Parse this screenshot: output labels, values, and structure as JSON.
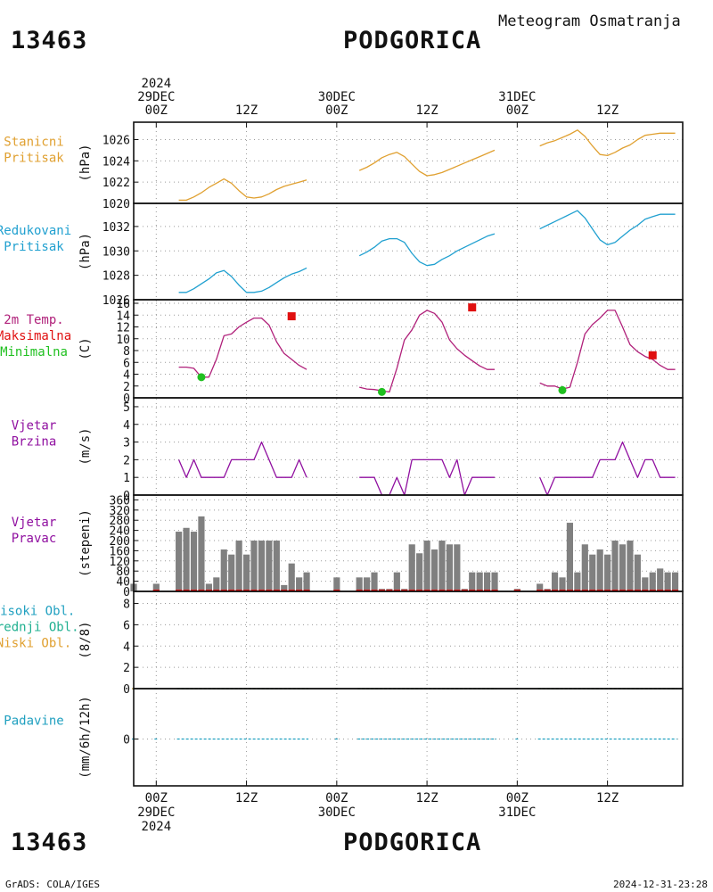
{
  "header": {
    "station_id": "13463",
    "station_name": "PODGORICA",
    "subtitle": "Meteogram Osmatranja"
  },
  "footer": {
    "credit": "GrADS: COLA/IGES",
    "timestamp": "2024-12-31-23:28"
  },
  "time_axis": {
    "top_ticks": [
      {
        "hour": 0,
        "lines": [
          "2024",
          "29DEC",
          "00Z"
        ]
      },
      {
        "hour": 12,
        "lines": [
          "12Z"
        ]
      },
      {
        "hour": 24,
        "lines": [
          "30DEC",
          "00Z"
        ]
      },
      {
        "hour": 36,
        "lines": [
          "12Z"
        ]
      },
      {
        "hour": 48,
        "lines": [
          "31DEC",
          "00Z"
        ]
      },
      {
        "hour": 60,
        "lines": [
          "12Z"
        ]
      }
    ],
    "bottom_ticks": [
      {
        "hour": 0,
        "lines": [
          "00Z",
          "29DEC",
          "2024"
        ]
      },
      {
        "hour": 12,
        "lines": [
          "12Z"
        ]
      },
      {
        "hour": 24,
        "lines": [
          "00Z",
          "30DEC"
        ]
      },
      {
        "hour": 36,
        "lines": [
          "12Z"
        ]
      },
      {
        "hour": 48,
        "lines": [
          "00Z",
          "31DEC"
        ]
      },
      {
        "hour": 60,
        "lines": [
          "12Z"
        ]
      }
    ],
    "hour_range": [
      -3,
      70
    ]
  },
  "colors": {
    "station_pressure": "#e0a030",
    "reduced_pressure": "#20a0d0",
    "temperature": "#b0207a",
    "maximum": "#e01010",
    "minimum": "#20c020",
    "wind": "#9010a0",
    "bars": "#808080",
    "high_cloud": "#20a0c0",
    "mid_cloud": "#20b090",
    "low_cloud": "#e0a030",
    "precip": "#20a0c0"
  },
  "chart_data": [
    {
      "type": "line",
      "panel": "station_pressure",
      "labels": [
        "Stanicni",
        "Pritisak"
      ],
      "ylabel": "(hPa)",
      "ylim": [
        1020,
        1027.3
      ],
      "yticks": [
        1020,
        1022,
        1024,
        1026
      ],
      "series": [
        {
          "segments": [
            {
              "x": [
                3,
                4,
                5,
                6,
                7,
                8,
                9,
                10,
                11,
                12,
                13,
                14,
                15,
                16,
                17,
                18,
                19,
                20
              ],
              "y": [
                1020.3,
                1020.3,
                1020.6,
                1021.0,
                1021.5,
                1021.9,
                1022.3,
                1021.9,
                1021.2,
                1020.6,
                1020.5,
                1020.6,
                1020.9,
                1021.3,
                1021.6,
                1021.8,
                1022.0,
                1022.2
              ]
            },
            {
              "x": [
                27,
                28,
                29,
                30,
                31,
                32,
                33,
                34,
                35,
                36,
                37,
                38,
                39,
                40,
                41,
                42,
                43,
                44,
                45
              ],
              "y": [
                1023.1,
                1023.4,
                1023.8,
                1024.3,
                1024.6,
                1024.8,
                1024.4,
                1023.7,
                1023.0,
                1022.6,
                1022.7,
                1022.9,
                1023.2,
                1023.5,
                1023.8,
                1024.1,
                1024.4,
                1024.7,
                1025.0
              ]
            },
            {
              "x": [
                51,
                52,
                53,
                54,
                55,
                56,
                57,
                58,
                59,
                60,
                61,
                62,
                63,
                64,
                65,
                66,
                67,
                68,
                69
              ],
              "y": [
                1025.4,
                1025.7,
                1025.9,
                1026.2,
                1026.5,
                1026.9,
                1026.3,
                1025.4,
                1024.6,
                1024.5,
                1024.8,
                1025.2,
                1025.5,
                1026.0,
                1026.4,
                1026.5,
                1026.6,
                1026.6,
                1026.6
              ]
            }
          ]
        }
      ]
    },
    {
      "type": "line",
      "panel": "reduced_pressure",
      "labels": [
        "Redukovani",
        "Pritisak"
      ],
      "ylabel": "(hPa)",
      "ylim": [
        1026,
        1033.6
      ],
      "yticks": [
        1026,
        1028,
        1030,
        1032
      ],
      "series": [
        {
          "segments": [
            {
              "x": [
                3,
                4,
                5,
                6,
                7,
                8,
                9,
                10,
                11,
                12,
                13,
                14,
                15,
                16,
                17,
                18,
                19,
                20
              ],
              "y": [
                1026.6,
                1026.6,
                1026.9,
                1027.3,
                1027.7,
                1028.2,
                1028.4,
                1027.9,
                1027.2,
                1026.6,
                1026.6,
                1026.7,
                1027.0,
                1027.4,
                1027.8,
                1028.1,
                1028.3,
                1028.6
              ]
            },
            {
              "x": [
                27,
                28,
                29,
                30,
                31,
                32,
                33,
                34,
                35,
                36,
                37,
                38,
                39,
                40,
                41,
                42,
                43,
                44,
                45
              ],
              "y": [
                1029.6,
                1029.9,
                1030.3,
                1030.8,
                1031.0,
                1031.0,
                1030.7,
                1029.8,
                1029.1,
                1028.8,
                1028.9,
                1029.3,
                1029.6,
                1030.0,
                1030.3,
                1030.6,
                1030.9,
                1031.2,
                1031.4
              ]
            },
            {
              "x": [
                51,
                52,
                53,
                54,
                55,
                56,
                57,
                58,
                59,
                60,
                61,
                62,
                63,
                64,
                65,
                66,
                67,
                68,
                69
              ],
              "y": [
                1031.8,
                1032.1,
                1032.4,
                1032.7,
                1033.0,
                1033.3,
                1032.7,
                1031.8,
                1030.9,
                1030.5,
                1030.7,
                1031.2,
                1031.7,
                1032.1,
                1032.6,
                1032.8,
                1033.0,
                1033.0,
                1033.0
              ]
            }
          ]
        }
      ]
    },
    {
      "type": "line",
      "panel": "temperature",
      "labels": [
        "2m Temp.",
        "Maksimalna",
        "Minimalna"
      ],
      "ylabel": "(C)",
      "ylim": [
        0,
        16
      ],
      "yticks": [
        0,
        2,
        4,
        6,
        8,
        10,
        12,
        14,
        16
      ],
      "series": [
        {
          "name": "2m Temp.",
          "segments": [
            {
              "x": [
                3,
                4,
                5,
                6,
                7,
                8,
                9,
                10,
                11,
                12,
                13,
                14,
                15,
                16,
                17,
                18,
                19,
                20
              ],
              "y": [
                5.2,
                5.2,
                5.0,
                3.5,
                3.5,
                6.5,
                10.5,
                10.8,
                12.0,
                12.8,
                13.5,
                13.5,
                12.3,
                9.5,
                7.5,
                6.5,
                5.5,
                4.8
              ]
            },
            {
              "x": [
                27,
                28,
                29,
                30,
                31,
                32,
                33,
                34,
                35,
                36,
                37,
                38,
                39,
                40,
                41,
                42,
                43,
                44,
                45
              ],
              "y": [
                1.8,
                1.5,
                1.4,
                1.2,
                1.0,
                5.0,
                9.8,
                11.5,
                14.0,
                14.8,
                14.3,
                12.8,
                9.8,
                8.3,
                7.2,
                6.3,
                5.4,
                4.8,
                4.8
              ]
            },
            {
              "x": [
                51,
                52,
                53,
                54,
                55,
                56,
                57,
                58,
                59,
                60,
                61,
                62,
                63,
                64,
                65,
                66,
                67,
                68,
                69
              ],
              "y": [
                2.5,
                2.0,
                2.0,
                1.5,
                1.8,
                6.0,
                10.8,
                12.4,
                13.5,
                14.8,
                14.8,
                12.0,
                9.0,
                7.8,
                7.0,
                6.5,
                5.5,
                4.8,
                4.8
              ]
            }
          ]
        },
        {
          "name": "Maksimalna",
          "points": [
            {
              "x": 18,
              "y": 13.8
            },
            {
              "x": 42,
              "y": 15.3
            },
            {
              "x": 66,
              "y": 7.2
            }
          ]
        },
        {
          "name": "Minimalna",
          "points": [
            {
              "x": 6,
              "y": 3.5
            },
            {
              "x": 30,
              "y": 1.0
            },
            {
              "x": 54,
              "y": 1.3
            }
          ]
        }
      ]
    },
    {
      "type": "line",
      "panel": "wind_speed",
      "labels": [
        "Vjetar",
        "Brzina"
      ],
      "ylabel": "(m/s)",
      "ylim": [
        0,
        5.3
      ],
      "yticks": [
        0,
        1,
        2,
        3,
        4,
        5
      ],
      "series": [
        {
          "segments": [
            {
              "x": [
                3,
                4,
                5,
                6,
                7,
                8,
                9,
                10,
                11,
                12,
                13,
                14,
                15,
                16,
                17,
                18,
                19,
                20
              ],
              "y": [
                2,
                1,
                2,
                1,
                1,
                1,
                1,
                2,
                2,
                2,
                2,
                3,
                2,
                1,
                1,
                1,
                2,
                1
              ]
            },
            {
              "x": [
                27,
                28,
                29,
                30,
                31,
                32,
                33,
                34,
                35,
                36,
                37,
                38,
                39,
                40,
                41,
                42,
                43,
                44,
                45
              ],
              "y": [
                1,
                1,
                1,
                0,
                0,
                1,
                0,
                2,
                2,
                2,
                2,
                2,
                1,
                2,
                0,
                1,
                1,
                1,
                1
              ]
            },
            {
              "x": [
                51,
                52,
                53,
                54,
                55,
                56,
                57,
                58,
                59,
                60,
                61,
                62,
                63,
                64,
                65,
                66,
                67,
                68,
                69
              ],
              "y": [
                1,
                0,
                1,
                1,
                1,
                1,
                1,
                1,
                2,
                2,
                2,
                3,
                2,
                1,
                2,
                2,
                1,
                1,
                1
              ]
            }
          ]
        }
      ]
    },
    {
      "type": "bar",
      "panel": "wind_direction",
      "labels": [
        "Vjetar",
        "Pravac"
      ],
      "ylabel": "(stepeni)",
      "ylim": [
        0,
        365
      ],
      "yticks": [
        0,
        40,
        80,
        120,
        160,
        200,
        240,
        280,
        320,
        360
      ],
      "x": [
        -3,
        0,
        3,
        4,
        5,
        6,
        7,
        8,
        9,
        10,
        11,
        12,
        13,
        14,
        15,
        16,
        17,
        18,
        19,
        20,
        24,
        27,
        28,
        29,
        30,
        31,
        32,
        33,
        34,
        35,
        36,
        37,
        38,
        39,
        40,
        41,
        42,
        43,
        44,
        45,
        48,
        51,
        52,
        53,
        54,
        55,
        56,
        57,
        58,
        59,
        60,
        61,
        62,
        63,
        64,
        65,
        66,
        67,
        68,
        69
      ],
      "values": [
        30,
        30,
        235,
        250,
        235,
        295,
        30,
        55,
        165,
        145,
        200,
        145,
        200,
        200,
        200,
        200,
        25,
        110,
        55,
        75,
        55,
        55,
        55,
        75,
        10,
        10,
        75,
        10,
        185,
        150,
        200,
        165,
        200,
        185,
        185,
        10,
        75,
        75,
        75,
        75,
        10,
        30,
        10,
        75,
        55,
        270,
        75,
        185,
        145,
        165,
        145,
        200,
        185,
        200,
        145,
        55,
        75,
        90,
        75,
        75
      ]
    },
    {
      "type": "line",
      "panel": "clouds",
      "labels": [
        "Visoki Obl.",
        "Srednji Obl.",
        "Niski Obl."
      ],
      "ylabel": "(8/8)",
      "ylim": [
        0,
        8.8
      ],
      "yticks": [
        0,
        2,
        4,
        6,
        8
      ],
      "series": [
        {
          "name": "Visoki Obl.",
          "value": 0
        },
        {
          "name": "Srednji Obl.",
          "value": 0
        },
        {
          "name": "Niski Obl.",
          "value": 0
        }
      ]
    },
    {
      "type": "line",
      "panel": "precipitation",
      "labels": [
        "Padavine"
      ],
      "ylabel": "(mm/6h/12h)",
      "ylim": [
        -1,
        1
      ],
      "yticks": [
        0
      ],
      "series": [
        {
          "name": "Padavine",
          "value": 0
        }
      ]
    }
  ]
}
